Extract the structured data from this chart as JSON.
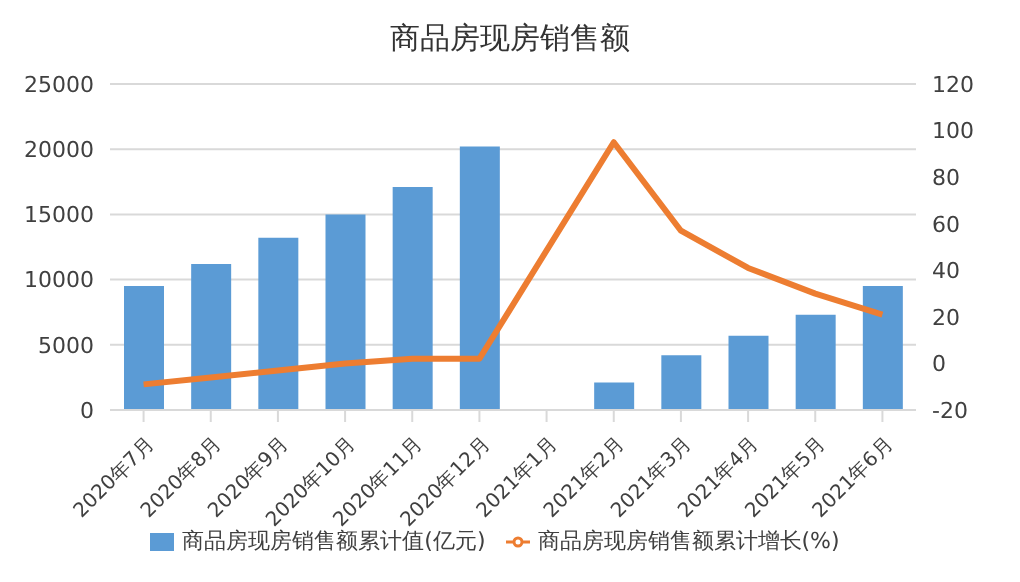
{
  "chart_data": {
    "type": "bar",
    "title": "商品房现房销售额",
    "categories": [
      "2020年7月",
      "2020年8月",
      "2020年9月",
      "2020年10月",
      "2020年11月",
      "2020年12月",
      "2021年1月",
      "2021年2月",
      "2021年3月",
      "2021年4月",
      "2021年5月",
      "2021年6月"
    ],
    "series": [
      {
        "name": "商品房现房销售额累计值(亿元)",
        "color": "#5b9bd5",
        "values": [
          9500,
          11200,
          13200,
          15000,
          17100,
          20200,
          null,
          2100,
          4200,
          5700,
          7300,
          9500
        ]
      },
      {
        "name": "商品房现房销售额累计增长(%)",
        "type": "line",
        "axis": "y2",
        "color": "#ed7d31",
        "values": [
          -9,
          -6,
          -3,
          0,
          2,
          2,
          null,
          95,
          57,
          41,
          30,
          21
        ]
      }
    ],
    "ylim": [
      0,
      25000
    ],
    "yticks": [
      0,
      5000,
      10000,
      15000,
      20000,
      25000
    ],
    "y2lim": [
      -20,
      120
    ],
    "y2ticks": [
      -20,
      0,
      20,
      40,
      60,
      80,
      100,
      120
    ],
    "grid": "y",
    "legend": "bottom",
    "marker": "none",
    "line_style": "solid"
  }
}
